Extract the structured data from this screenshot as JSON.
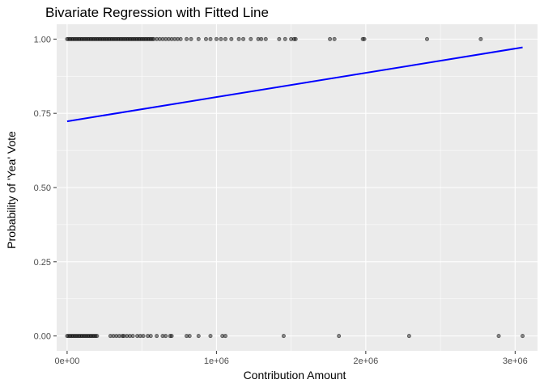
{
  "chart_data": {
    "type": "scatter",
    "title": "Bivariate Regression with Fitted Line",
    "xlabel": "Contribution Amount",
    "ylabel": "Probability of 'Yea' Vote",
    "xlim": [
      -70000,
      3150000
    ],
    "ylim": [
      -0.05,
      1.05
    ],
    "x_ticks": [
      0,
      1000000,
      2000000,
      3000000
    ],
    "x_tick_labels": [
      "0e+00",
      "1e+06",
      "2e+06",
      "3e+06"
    ],
    "y_ticks": [
      0,
      0.25,
      0.5,
      0.75,
      1
    ],
    "y_tick_labels": [
      "0.00",
      "0.25",
      "0.50",
      "0.75",
      "1.00"
    ],
    "grid": true,
    "point_color": "#000000",
    "line_color": "#0000ff",
    "panel_background": "#ebebeb",
    "series": [
      {
        "kind": "points",
        "y": 1,
        "x": [
          0,
          10000,
          20000,
          30000,
          40000,
          50000,
          60000,
          70000,
          80000,
          90000,
          100000,
          110000,
          120000,
          130000,
          140000,
          150000,
          160000,
          170000,
          180000,
          190000,
          200000,
          210000,
          220000,
          230000,
          240000,
          250000,
          260000,
          270000,
          280000,
          290000,
          300000,
          310000,
          320000,
          330000,
          340000,
          350000,
          360000,
          370000,
          380000,
          390000,
          400000,
          410000,
          420000,
          430000,
          440000,
          450000,
          460000,
          470000,
          480000,
          490000,
          500000,
          510000,
          520000,
          530000,
          540000,
          550000,
          560000,
          570000,
          580000,
          600000,
          620000,
          640000,
          660000,
          680000,
          700000,
          720000,
          740000,
          760000,
          800000,
          830000,
          880000,
          930000,
          960000,
          1000000,
          1030000,
          1060000,
          1100000,
          1150000,
          1180000,
          1230000,
          1280000,
          1300000,
          1330000,
          1420000,
          1460000,
          1500000,
          1520000,
          1530000,
          1760000,
          1790000,
          1980000,
          1990000,
          2410000,
          2770000
        ]
      },
      {
        "kind": "points",
        "y": 0,
        "x": [
          0,
          10000,
          20000,
          30000,
          40000,
          50000,
          60000,
          70000,
          80000,
          90000,
          100000,
          110000,
          120000,
          130000,
          140000,
          150000,
          160000,
          170000,
          180000,
          190000,
          200000,
          290000,
          310000,
          330000,
          350000,
          370000,
          380000,
          400000,
          420000,
          440000,
          470000,
          490000,
          510000,
          540000,
          560000,
          600000,
          640000,
          660000,
          690000,
          700000,
          800000,
          820000,
          880000,
          960000,
          1040000,
          1060000,
          1450000,
          1820000,
          2290000,
          2890000,
          3050000
        ]
      },
      {
        "kind": "line",
        "name": "",
        "x": [
          0,
          3050000
        ],
        "y": [
          0.723,
          0.972
        ]
      }
    ]
  }
}
